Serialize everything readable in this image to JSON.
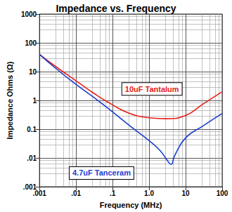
{
  "chart_data": {
    "type": "line",
    "title": "Impedance vs. Frequency",
    "x_label": "Frequency (MHz)",
    "y_label": "Impedance Ohms (Ω)",
    "log": true,
    "grid": true,
    "xlim": [
      0.001,
      100
    ],
    "ylim": [
      0.001,
      1000
    ],
    "xticks": [
      {
        "value": 0.001,
        "label": ".001"
      },
      {
        "value": 0.01,
        "label": ".01"
      },
      {
        "value": 0.1,
        "label": ".1"
      },
      {
        "value": 1,
        "label": "1.0"
      },
      10,
      100
    ],
    "yticks": [
      {
        "value": 0.001,
        "label": ".001"
      },
      {
        "value": 0.01,
        "label": ".01"
      },
      0.1,
      1,
      10,
      100,
      1000
    ],
    "series": [
      {
        "color": "#e8201a",
        "x": [
          0.001,
          0.003,
          0.01,
          0.03,
          0.1,
          0.3,
          1,
          3,
          10,
          30,
          100
        ],
        "values": [
          40,
          14,
          4.8,
          1.8,
          0.7,
          0.35,
          0.25,
          0.23,
          0.3,
          0.75,
          2
        ]
      },
      {
        "color": "#1a3cd0",
        "x": [
          0.001,
          0.003,
          0.01,
          0.03,
          0.1,
          0.3,
          1,
          2,
          3,
          4,
          5,
          10,
          30,
          100
        ],
        "values": [
          40,
          12,
          3.6,
          1.3,
          0.4,
          0.13,
          0.04,
          0.018,
          0.009,
          0.006,
          0.012,
          0.05,
          0.13,
          0.35
        ]
      }
    ],
    "annotations": [
      {
        "text": "10uF Tantalum",
        "x": 1.2,
        "y": 2.5,
        "color": "#e8201a"
      },
      {
        "text": "4.7uF Tanceram",
        "x": 0.05,
        "y": 0.003,
        "color": "#1a3cd0"
      }
    ]
  }
}
